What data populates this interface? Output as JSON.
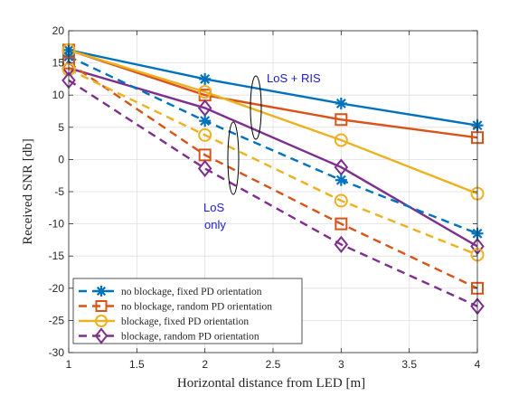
{
  "chart_data": {
    "type": "line",
    "xlabel": "Horizontal distance from LED [m]",
    "ylabel": "Received SNR [db]",
    "xlim": [
      1,
      4
    ],
    "ylim": [
      -30,
      20
    ],
    "x_ticks": [
      "1",
      "1.5",
      "2",
      "2.5",
      "3",
      "3.5",
      "4"
    ],
    "y_ticks": [
      "-30",
      "-25",
      "-20",
      "-15",
      "-10",
      "-5",
      "0",
      "5",
      "10",
      "15",
      "20"
    ],
    "grid": true,
    "legend_position": "bottom-left",
    "x": [
      1,
      2,
      3,
      4
    ],
    "series": [
      {
        "name": "no blockage, fixed PD orientation",
        "group": "LoS + RIS",
        "style": "solid",
        "marker": "asterisk",
        "color": "#0072BD",
        "values": [
          17.0,
          12.5,
          8.7,
          5.3
        ]
      },
      {
        "name": "no blockage, random PD orientation",
        "group": "LoS + RIS",
        "style": "solid",
        "marker": "square",
        "color": "#D95319",
        "values": [
          17.0,
          10.0,
          6.2,
          3.4
        ]
      },
      {
        "name": "blockage, fixed PD orientation",
        "group": "LoS + RIS",
        "style": "solid",
        "marker": "circle",
        "color": "#EDB120",
        "values": [
          17.0,
          10.5,
          3.0,
          -5.3
        ]
      },
      {
        "name": "blockage, random PD orientation",
        "group": "LoS + RIS",
        "style": "solid",
        "marker": "diamond",
        "color": "#7E2F8E",
        "values": [
          14.2,
          8.0,
          -1.2,
          -13.5
        ]
      },
      {
        "name": "no blockage, fixed PD orientation",
        "group": "LoS only",
        "style": "dashed",
        "marker": "asterisk",
        "color": "#0072BD",
        "values": [
          16.0,
          6.0,
          -3.2,
          -11.5
        ]
      },
      {
        "name": "no blockage, random PD orientation",
        "group": "LoS only",
        "style": "dashed",
        "marker": "square",
        "color": "#D95319",
        "values": [
          15.0,
          0.7,
          -10.0,
          -20.0
        ]
      },
      {
        "name": "blockage, fixed PD orientation",
        "group": "LoS only",
        "style": "dashed",
        "marker": "circle",
        "color": "#EDB120",
        "values": [
          14.0,
          3.8,
          -6.4,
          -14.8
        ]
      },
      {
        "name": "blockage, random PD orientation",
        "group": "LoS only",
        "style": "dashed",
        "marker": "diamond",
        "color": "#7E2F8E",
        "values": [
          12.3,
          -1.4,
          -13.2,
          -22.8
        ]
      }
    ],
    "legend": [
      {
        "label": "no blockage, fixed PD orientation",
        "style": "dashed",
        "marker": "asterisk",
        "color": "#0072BD"
      },
      {
        "label": "no blockage, random PD orientation",
        "style": "dashed",
        "marker": "square",
        "color": "#D95319"
      },
      {
        "label": "blockage, fixed PD orientation",
        "style": "solid",
        "marker": "circle",
        "color": "#EDB120"
      },
      {
        "label": "blockage, random PD orientation",
        "style": "dashed",
        "marker": "diamond",
        "color": "#7E2F8E"
      }
    ],
    "annotations": [
      {
        "text": "LoS + RIS",
        "color": "#1a1ad6"
      },
      {
        "text_lines": [
          "LoS",
          "only"
        ],
        "color": "#1a1ad6"
      }
    ]
  }
}
